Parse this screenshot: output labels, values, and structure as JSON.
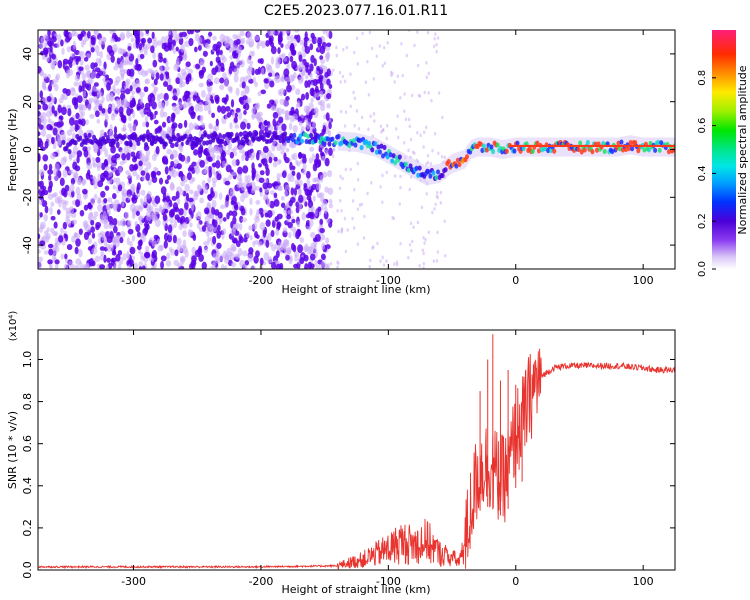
{
  "title": "C2E5.2023.077.16.01.R11",
  "colors": {
    "spectro_dot_dark": "#5a00e6",
    "spectro_dot_light": "#c7a6f5",
    "snr_line": "#e8332e",
    "frame": "#000000"
  },
  "chart_data": [
    {
      "type": "heatmap",
      "xlabel": "Height of straight line (km)",
      "ylabel": "Frequency (Hz)",
      "xlim": [
        -375,
        125
      ],
      "ylim": [
        -50,
        50
      ],
      "xticks": [
        -300,
        -200,
        -100,
        0,
        100
      ],
      "yticks": [
        -40,
        -20,
        0,
        20,
        40
      ],
      "colorbar": {
        "label": "Normalized spectral amplitude",
        "range": [
          0.0,
          1.0
        ],
        "ticks": [
          0.0,
          0.2,
          0.4,
          0.6,
          0.8
        ]
      },
      "ridge": {
        "x": [
          -350,
          -300,
          -250,
          -200,
          -175,
          -150,
          -125,
          -110,
          -100,
          -90,
          -80,
          -70,
          -60,
          -50,
          -45,
          -40,
          -35,
          -30,
          -20,
          -10,
          0,
          20,
          60,
          80,
          90,
          100,
          125
        ],
        "y": [
          4,
          4,
          4,
          5,
          5,
          4,
          3,
          1,
          -2,
          -5,
          -8,
          -11,
          -10,
          -6,
          -5,
          -4,
          0,
          1,
          1,
          0,
          1,
          1,
          1,
          1,
          2,
          1,
          1
        ]
      },
      "grid": false
    },
    {
      "type": "line",
      "xlabel": "Height of straight line (km)",
      "ylabel": "SNR (10 * v/v)",
      "yscale_note": "(x10⁴)",
      "xlim": [
        -375,
        125
      ],
      "ylim": [
        0,
        1.14
      ],
      "xticks": [
        -300,
        -200,
        -100,
        0,
        100
      ],
      "yticks": [
        0.0,
        0.2,
        0.4,
        0.6,
        0.8,
        1.0
      ],
      "series": [
        {
          "x": [
            -375,
            -300,
            -200,
            -140,
            -120,
            -100,
            -90,
            -80,
            -70,
            -60,
            -50,
            -45,
            -40,
            -35,
            -30,
            -25,
            -20,
            -15,
            -10,
            -5,
            0,
            5,
            10,
            15,
            20,
            30,
            40,
            50,
            60,
            80,
            100,
            110,
            125
          ],
          "y": [
            0.015,
            0.015,
            0.015,
            0.02,
            0.05,
            0.1,
            0.13,
            0.12,
            0.14,
            0.08,
            0.06,
            0.04,
            0.1,
            0.3,
            0.45,
            0.5,
            0.5,
            0.45,
            0.42,
            0.5,
            0.65,
            0.7,
            0.8,
            0.88,
            0.92,
            0.96,
            0.97,
            0.97,
            0.97,
            0.97,
            0.96,
            0.95,
            0.95
          ],
          "spikes": [
            {
              "x": -18,
              "y": 1.12
            },
            {
              "x": -22,
              "y": 1.0
            },
            {
              "x": -28,
              "y": 0.85
            },
            {
              "x": -12,
              "y": 0.9
            },
            {
              "x": -6,
              "y": 0.95
            },
            {
              "x": 0,
              "y": 0.88
            },
            {
              "x": 5,
              "y": 0.8
            }
          ]
        }
      ],
      "grid": false
    }
  ]
}
